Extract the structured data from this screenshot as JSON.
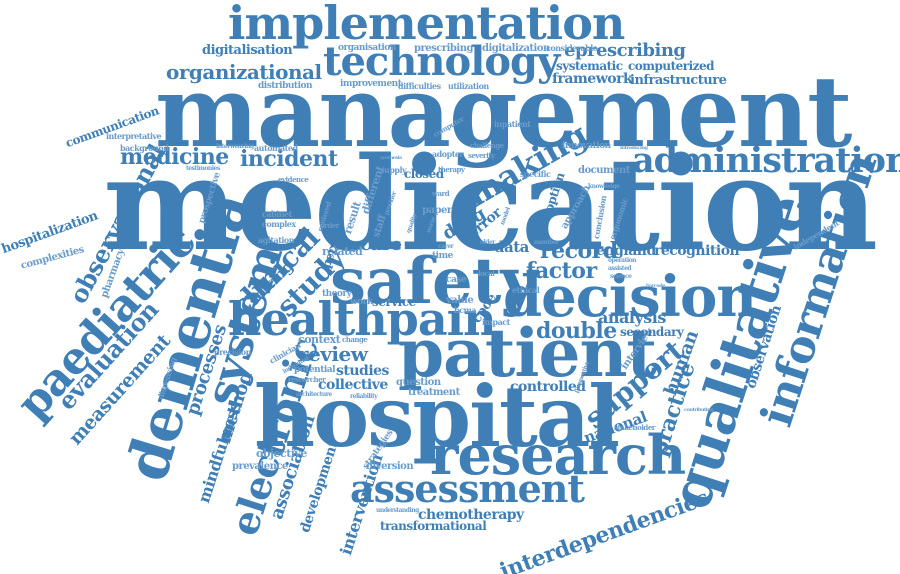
{
  "colors": {
    "primary": "#3f7fb6",
    "light": "#6a9ccb",
    "background": "#ffffff"
  },
  "words": {
    "implementation": "implementation",
    "management": "management",
    "medication": "medication",
    "technology": "technology",
    "organizational": "organizational",
    "digitalisation": "digitalisation",
    "organisation": "organisation",
    "prescribing": "prescribing",
    "digitalization": "digitalization",
    "considerable": "considerable",
    "eprescribing": "eprescribing",
    "systematic": "systematic",
    "computerized": "computerized",
    "framework": "framework",
    "infrastructure": "infrastructure",
    "distribution": "distribution",
    "improvement": "improvement",
    "difficulties": "difficulties",
    "utilization": "utilization",
    "communication": "communication",
    "interpretative": "interpretative",
    "administration": "administration",
    "medicine": "medicine",
    "incident": "incident",
    "making": "making",
    "safety": "safety",
    "decision": "decision",
    "healthpain": "healthpain",
    "patient": "patient",
    "hospital": "hospital",
    "research": "research",
    "assessment": "assessment",
    "qualitative": "qualitative",
    "information": "information",
    "dementia": "dementia",
    "paediatric": "paediatric",
    "system": "system",
    "electronic": "electronic",
    "observational": "observational",
    "evaluation": "evaluation",
    "measurement": "measurement",
    "hospitalization": "hospitalization",
    "complexities": "complexities",
    "pharmacy": "pharmacy",
    "clinical": "clinical",
    "study": "study",
    "setting": "setting",
    "care": "care",
    "record": "record",
    "england": "england",
    "recognition": "recognition",
    "factor": "factor",
    "review": "review",
    "context": "context",
    "studies": "studies",
    "collective": "collective",
    "support": "support",
    "human": "human",
    "practice": "practice",
    "national": "national",
    "analysis": "analysis",
    "double": "double",
    "secondary": "secondary",
    "controlled": "controlled",
    "question": "question",
    "treatment": "treatment",
    "drug": "drug",
    "error": "error",
    "data": "data",
    "adoption": "adoption",
    "approach": "approach",
    "document": "document",
    "innovation": "innovation",
    "inpatient": "inpatient",
    "adopter": "adopter",
    "severity": "severity",
    "challenge": "challenge",
    "processes": "processes",
    "method": "method",
    "mindfulness": "mindfulness",
    "prospective": "prospective",
    "objective": "objective",
    "prevalence": "prevalence",
    "association": "association",
    "development": "development",
    "intervention": "intervention",
    "diversion": "diversion",
    "strategies": "strategies",
    "chemotherapy": "chemotherapy",
    "transformational": "transformational",
    "interdependencies": "interdependencies",
    "understanding": "understanding",
    "observation": "observation",
    "independent": "independent",
    "interview": "interview",
    "stakeholder": "stakeholder",
    "precision": "precision",
    "dispensing": "dispensing",
    "potential": "potential",
    "researcher": "researcher",
    "architecture": "architecture",
    "related": "related",
    "person": "person",
    "theory": "theory",
    "work": "work",
    "service": "service",
    "value": "value",
    "bcma": "bcma",
    "impact": "impact",
    "ethical": "ethical",
    "local": "local",
    "case": "case",
    "time": "time",
    "cpoe": "cpoe",
    "background": "background",
    "automated": "automated",
    "evidence": "evidence",
    "testimonies": "testimonies",
    "interweaving": "interweaving",
    "different": "different",
    "closed": "closed",
    "supply": "supply",
    "therapy": "therapy",
    "specific": "specific",
    "cabinet": "cabinet",
    "complex": "complex",
    "order": "order",
    "result": "result",
    "staff": "staff",
    "paper": "paper",
    "computer": "computer",
    "agitation": "agitation",
    "knowledge": "knowledge",
    "ergonomic": "ergonomic",
    "conclusion": "conclusion",
    "member": "member",
    "operation": "operation",
    "assisted": "assisted",
    "science": "science",
    "barcode": "barcode",
    "introducing": "introducing",
    "perspective": "perspective",
    "reliability": "reliability",
    "ward": "ward",
    "model": "model",
    "older": "older",
    "carer": "carer",
    "centered": "centered",
    "individual": "individual",
    "clinician": "clinician",
    "change": "change",
    "provider": "provider",
    "nurse": "nurse",
    "contributing": "contributing",
    "synthesis": "synthesis",
    "quality": "quality"
  }
}
